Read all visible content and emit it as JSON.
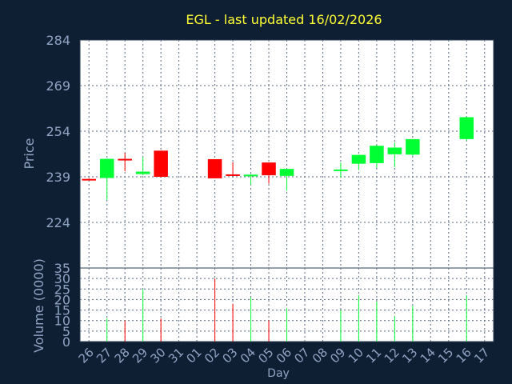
{
  "chart_data": {
    "type": "candlestick",
    "title": "EGL - last updated 16/02/2026",
    "price_axis": {
      "label": "Price",
      "ticks": [
        284,
        269,
        254,
        239,
        224
      ],
      "ylim": [
        209,
        284
      ]
    },
    "volume_axis": {
      "label": "Volume (0000)",
      "ticks": [
        35,
        30,
        25,
        20,
        15,
        10,
        5,
        0
      ],
      "ylim": [
        0,
        35
      ]
    },
    "x_axis": {
      "label": "Day",
      "tick_labels": [
        "26",
        "27",
        "28",
        "29",
        "30",
        "31",
        "01",
        "02",
        "03",
        "04",
        "05",
        "06",
        "07",
        "08",
        "09",
        "10",
        "11",
        "12",
        "13",
        "14",
        "15",
        "16",
        "17"
      ]
    },
    "grid": true,
    "colors": {
      "background": "#0f1f33",
      "plot": "#ffffff",
      "up": "#00ff33",
      "down": "#ff0000",
      "title": "#ffff33",
      "axis_text": "#8fa3c3"
    },
    "candles": [
      {
        "x": 0,
        "open": 238.3,
        "high": 238.5,
        "low": 237.9,
        "close": 238.1,
        "volume": 0
      },
      {
        "x": 1,
        "open": 238.6,
        "high": 245.0,
        "low": 231.4,
        "close": 244.9,
        "volume": 11
      },
      {
        "x": 2,
        "open": 244.9,
        "high": 246.9,
        "low": 240.8,
        "close": 244.6,
        "volume": 10
      },
      {
        "x": 3,
        "open": 239.9,
        "high": 245.5,
        "low": 239.5,
        "close": 240.7,
        "volume": 25
      },
      {
        "x": 4,
        "open": 247.6,
        "high": 247.6,
        "low": 238.8,
        "close": 239.0,
        "volume": 11
      },
      {
        "x": 7,
        "open": 244.8,
        "high": 244.8,
        "low": 238.5,
        "close": 238.5,
        "volume": 30
      },
      {
        "x": 8,
        "open": 239.8,
        "high": 243.8,
        "low": 239.2,
        "close": 239.3,
        "volume": 18
      },
      {
        "x": 9,
        "open": 239.2,
        "high": 239.9,
        "low": 236.4,
        "close": 239.7,
        "volume": 21
      },
      {
        "x": 10,
        "open": 243.7,
        "high": 243.7,
        "low": 236.8,
        "close": 239.5,
        "volume": 10
      },
      {
        "x": 11,
        "open": 239.3,
        "high": 241.7,
        "low": 234.4,
        "close": 241.6,
        "volume": 16
      },
      {
        "x": 14,
        "open": 241.2,
        "high": 243.7,
        "low": 238.8,
        "close": 241.4,
        "volume": 15
      },
      {
        "x": 15,
        "open": 243.3,
        "high": 246.3,
        "low": 241.2,
        "close": 246.2,
        "volume": 22
      },
      {
        "x": 16,
        "open": 243.5,
        "high": 249.5,
        "low": 241.9,
        "close": 249.2,
        "volume": 19
      },
      {
        "x": 17,
        "open": 246.4,
        "high": 250.3,
        "low": 242.2,
        "close": 248.6,
        "volume": 12
      },
      {
        "x": 18,
        "open": 246.3,
        "high": 251.4,
        "low": 245.9,
        "close": 251.4,
        "volume": 17
      },
      {
        "x": 21,
        "open": 251.4,
        "high": 258.8,
        "low": 250.9,
        "close": 258.6,
        "volume": 22
      }
    ]
  }
}
